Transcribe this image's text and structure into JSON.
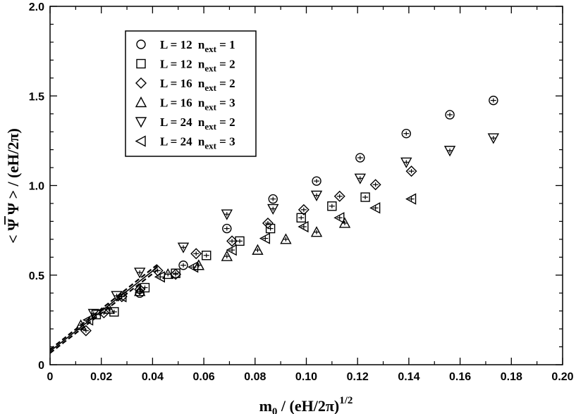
{
  "chart_data": {
    "type": "scatter",
    "title": "",
    "xlabel": {
      "parts": [
        "m",
        "0",
        " / (eH/2π)",
        "1/2"
      ],
      "full": "m_0 / (eH/2π)^1/2"
    },
    "ylabel": {
      "parts": [
        "< ",
        "Ψ",
        " Ψ > / (eH/2π)"
      ],
      "full": "< Ψbar Ψ > / (eH/2π)"
    },
    "xlim": [
      0,
      0.2
    ],
    "ylim": [
      0,
      2.0
    ],
    "xticks": [
      "0",
      "0.02",
      "0.04",
      "0.06",
      "0.08",
      "0.10",
      "0.12",
      "0.14",
      "0.16",
      "0.18",
      "0.20"
    ],
    "xtick_values": [
      0,
      0.02,
      0.04,
      0.06,
      0.08,
      0.1,
      0.12,
      0.14,
      0.16,
      0.18,
      0.2
    ],
    "yticks": [
      "0",
      "0.5",
      "1.0",
      "1.5",
      "2.0"
    ],
    "ytick_values": [
      0,
      0.5,
      1.0,
      1.5,
      2.0
    ],
    "legend_position": "top-left",
    "series": [
      {
        "name": "L = 12  n_ext = 1",
        "legend_l": "L = 12",
        "legend_n_sub": "ext",
        "legend_n_val": " = 1",
        "marker": "circle",
        "x": [
          0.035,
          0.052,
          0.069,
          0.087,
          0.104,
          0.121,
          0.139,
          0.156,
          0.173
        ],
        "y": [
          0.4,
          0.555,
          0.76,
          0.925,
          1.025,
          1.155,
          1.29,
          1.395,
          1.475
        ]
      },
      {
        "name": "L = 12  n_ext = 2",
        "legend_l": "L = 12",
        "legend_n_sub": "ext",
        "legend_n_val": " = 2",
        "marker": "square",
        "x": [
          0.018,
          0.025,
          0.037,
          0.049,
          0.061,
          0.074,
          0.086,
          0.098,
          0.11,
          0.123
        ],
        "y": [
          0.28,
          0.295,
          0.43,
          0.51,
          0.61,
          0.69,
          0.76,
          0.82,
          0.885,
          0.935
        ]
      },
      {
        "name": "L = 16  n_ext = 2",
        "legend_l": "L = 16",
        "legend_n_sub": "ext",
        "legend_n_val": " = 2",
        "marker": "diamond",
        "x": [
          0.014,
          0.021,
          0.028,
          0.035,
          0.042,
          0.049,
          0.057,
          0.071,
          0.085,
          0.099,
          0.113,
          0.127,
          0.141
        ],
        "y": [
          0.19,
          0.29,
          0.38,
          0.42,
          0.525,
          0.505,
          0.62,
          0.69,
          0.79,
          0.865,
          0.94,
          1.005,
          1.08
        ]
      },
      {
        "name": "L = 16  n_ext = 3",
        "legend_l": "L = 16",
        "legend_n_sub": "ext",
        "legend_n_val": " = 3",
        "marker": "triangle-up",
        "x": [
          0.012,
          0.023,
          0.035,
          0.046,
          0.058,
          0.069,
          0.081,
          0.092,
          0.104,
          0.115
        ],
        "y": [
          0.22,
          0.31,
          0.41,
          0.505,
          0.555,
          0.605,
          0.64,
          0.7,
          0.74,
          0.79
        ]
      },
      {
        "name": "L = 24  n_ext = 2",
        "legend_l": "L = 24",
        "legend_n_sub": "ext",
        "legend_n_val": " = 2",
        "marker": "triangle-down",
        "x": [
          0.017,
          0.026,
          0.035,
          0.052,
          0.069,
          0.087,
          0.104,
          0.121,
          0.139,
          0.156,
          0.173
        ],
        "y": [
          0.285,
          0.385,
          0.515,
          0.655,
          0.84,
          0.87,
          0.945,
          1.04,
          1.13,
          1.195,
          1.265
        ]
      },
      {
        "name": "L = 24  n_ext = 3",
        "legend_l": "L = 24",
        "legend_n_sub": "ext",
        "legend_n_val": " = 3",
        "marker": "triangle-left",
        "x": [
          0.015,
          0.028,
          0.043,
          0.056,
          0.071,
          0.084,
          0.099,
          0.113,
          0.127,
          0.141
        ],
        "y": [
          0.25,
          0.38,
          0.49,
          0.545,
          0.64,
          0.705,
          0.77,
          0.82,
          0.875,
          0.925
        ]
      }
    ],
    "fit_lines": [
      {
        "name": "fit-line-solid",
        "style": "solid",
        "x": [
          0.0,
          0.042
        ],
        "y": [
          0.075,
          0.545
        ]
      },
      {
        "name": "fit-line-dashed-upper",
        "style": "dashed",
        "x": [
          0.0,
          0.042
        ],
        "y": [
          0.085,
          0.56
        ]
      },
      {
        "name": "fit-line-dashed-lower",
        "style": "dashed",
        "x": [
          0.0,
          0.042
        ],
        "y": [
          0.065,
          0.53
        ]
      }
    ]
  }
}
